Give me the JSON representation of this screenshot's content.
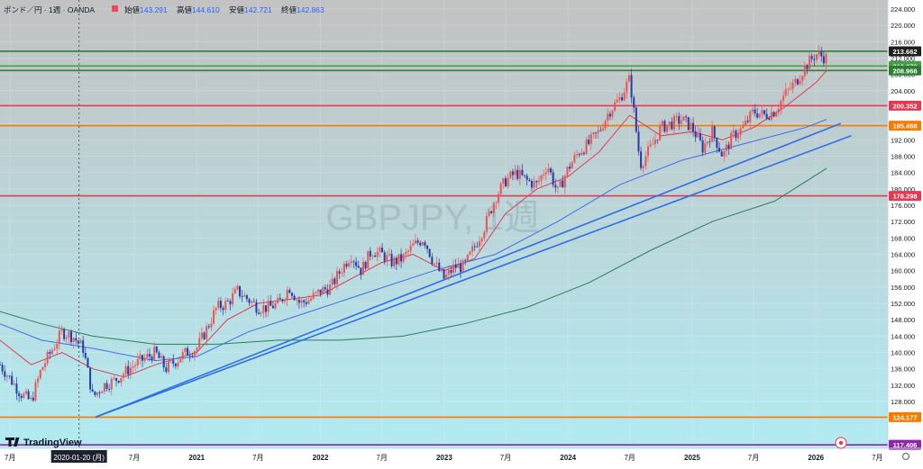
{
  "header": {
    "symbol": "ポンド／円 · 1週 · OANDA",
    "ohlc": [
      {
        "label": "始値",
        "value": "143.291"
      },
      {
        "label": "高値",
        "value": "144.610"
      },
      {
        "label": "安値",
        "value": "142.721"
      },
      {
        "label": "終値",
        "value": "142.863"
      }
    ],
    "up_color": "#f23645",
    "down_color": "#2962ff"
  },
  "watermark": "GBPJPY, 1週",
  "logo_text": "TradingView",
  "crosshair_date": "2020-01-20 (月)",
  "colors": {
    "bg_top": "#c2c2c2",
    "bg_bottom": "#b2ebf2",
    "candle_up": "#ef5350",
    "candle_down": "#283aa8",
    "ma_short": "#e53950",
    "ma_mid": "#3f6ee8",
    "ma_long": "#2e7d5b",
    "trend": "#2f6fe6"
  },
  "chart_data": {
    "type": "candlestick",
    "instrument": "GBPJPY",
    "timeframe": "1週",
    "x_range": [
      "2019-06-01",
      "2026-08-01"
    ],
    "y_range": [
      117,
      224
    ],
    "y_ticks": [
      124,
      128,
      132,
      136,
      140,
      144,
      148,
      152,
      156,
      160,
      164,
      168,
      172,
      176,
      180,
      184,
      188,
      192,
      196,
      200,
      204,
      208,
      212,
      216,
      220,
      224
    ],
    "x_ticks": [
      {
        "date": "2019-07-01",
        "label": "7月"
      },
      {
        "date": "2020-07-01",
        "label": "7月"
      },
      {
        "date": "2021-01-01",
        "label": "2021"
      },
      {
        "date": "2021-07-01",
        "label": "7月"
      },
      {
        "date": "2022-01-01",
        "label": "2022"
      },
      {
        "date": "2022-07-01",
        "label": "7月"
      },
      {
        "date": "2023-01-01",
        "label": "2023"
      },
      {
        "date": "2023-07-01",
        "label": "7月"
      },
      {
        "date": "2024-01-01",
        "label": "2024"
      },
      {
        "date": "2024-07-01",
        "label": "7月"
      },
      {
        "date": "2025-01-01",
        "label": "2025"
      },
      {
        "date": "2025-07-01",
        "label": "7月"
      },
      {
        "date": "2026-01-01",
        "label": "2026"
      },
      {
        "date": "2026-07-01",
        "label": "7月"
      }
    ],
    "price_path": [
      [
        "2019-06-01",
        137
      ],
      [
        "2019-08-01",
        130
      ],
      [
        "2019-09-01",
        128
      ],
      [
        "2019-10-01",
        136
      ],
      [
        "2019-12-01",
        145
      ],
      [
        "2020-01-01",
        144
      ],
      [
        "2020-02-01",
        141
      ],
      [
        "2020-03-01",
        129
      ],
      [
        "2020-04-01",
        132
      ],
      [
        "2020-05-01",
        133
      ],
      [
        "2020-06-01",
        135
      ],
      [
        "2020-07-01",
        137
      ],
      [
        "2020-09-01",
        140
      ],
      [
        "2020-10-01",
        136
      ],
      [
        "2020-11-01",
        138
      ],
      [
        "2020-12-01",
        140
      ],
      [
        "2021-01-01",
        141
      ],
      [
        "2021-02-01",
        146
      ],
      [
        "2021-03-01",
        151
      ],
      [
        "2021-04-01",
        152
      ],
      [
        "2021-05-01",
        155
      ],
      [
        "2021-06-01",
        153
      ],
      [
        "2021-07-01",
        151
      ],
      [
        "2021-08-01",
        151
      ],
      [
        "2021-09-01",
        152
      ],
      [
        "2021-10-01",
        156
      ],
      [
        "2021-11-01",
        152
      ],
      [
        "2021-12-01",
        153
      ],
      [
        "2022-01-01",
        155
      ],
      [
        "2022-02-01",
        156
      ],
      [
        "2022-03-01",
        160
      ],
      [
        "2022-04-01",
        164
      ],
      [
        "2022-05-01",
        160
      ],
      [
        "2022-06-01",
        165
      ],
      [
        "2022-07-01",
        164
      ],
      [
        "2022-08-01",
        162
      ],
      [
        "2022-09-01",
        163
      ],
      [
        "2022-10-01",
        166
      ],
      [
        "2022-11-01",
        168
      ],
      [
        "2022-12-01",
        162
      ],
      [
        "2023-01-01",
        158
      ],
      [
        "2023-02-01",
        161
      ],
      [
        "2023-03-01",
        161
      ],
      [
        "2023-04-01",
        166
      ],
      [
        "2023-05-01",
        171
      ],
      [
        "2023-06-01",
        178
      ],
      [
        "2023-07-01",
        182
      ],
      [
        "2023-08-01",
        184
      ],
      [
        "2023-09-01",
        182
      ],
      [
        "2023-10-01",
        181
      ],
      [
        "2023-11-01",
        186
      ],
      [
        "2023-12-01",
        179
      ],
      [
        "2024-01-01",
        185
      ],
      [
        "2024-02-01",
        189
      ],
      [
        "2024-03-01",
        191
      ],
      [
        "2024-04-01",
        194
      ],
      [
        "2024-05-01",
        199
      ],
      [
        "2024-06-01",
        202
      ],
      [
        "2024-07-01",
        207
      ],
      [
        "2024-08-01",
        186
      ],
      [
        "2024-09-01",
        190
      ],
      [
        "2024-10-01",
        195
      ],
      [
        "2024-11-01",
        196
      ],
      [
        "2024-12-01",
        197
      ],
      [
        "2025-01-01",
        195
      ],
      [
        "2025-02-01",
        190
      ],
      [
        "2025-03-01",
        194
      ],
      [
        "2025-04-01",
        188
      ],
      [
        "2025-05-01",
        193
      ],
      [
        "2025-06-01",
        195
      ],
      [
        "2025-07-01",
        199
      ],
      [
        "2025-08-01",
        198
      ],
      [
        "2025-09-01",
        199
      ],
      [
        "2025-10-01",
        203
      ],
      [
        "2025-11-01",
        206
      ],
      [
        "2025-12-01",
        210
      ],
      [
        "2026-01-01",
        213
      ],
      [
        "2026-02-01",
        212
      ]
    ],
    "moving_averages": [
      {
        "role": "short",
        "points": [
          [
            "2019-06-01",
            143
          ],
          [
            "2019-09-01",
            137
          ],
          [
            "2019-12-01",
            140
          ],
          [
            "2020-03-01",
            136
          ],
          [
            "2020-06-01",
            134
          ],
          [
            "2020-09-01",
            137
          ],
          [
            "2021-01-01",
            140
          ],
          [
            "2021-04-01",
            148
          ],
          [
            "2021-07-01",
            152
          ],
          [
            "2021-10-01",
            153
          ],
          [
            "2022-01-01",
            154
          ],
          [
            "2022-04-01",
            158
          ],
          [
            "2022-07-01",
            162
          ],
          [
            "2022-10-01",
            164
          ],
          [
            "2023-01-01",
            160
          ],
          [
            "2023-04-01",
            163
          ],
          [
            "2023-07-01",
            174
          ],
          [
            "2023-10-01",
            180
          ],
          [
            "2024-01-01",
            183
          ],
          [
            "2024-04-01",
            189
          ],
          [
            "2024-07-01",
            198
          ],
          [
            "2024-10-01",
            193
          ],
          [
            "2025-01-01",
            194
          ],
          [
            "2025-04-01",
            192
          ],
          [
            "2025-07-01",
            195
          ],
          [
            "2025-10-01",
            200
          ],
          [
            "2026-01-01",
            206
          ],
          [
            "2026-02-01",
            208.9
          ]
        ]
      },
      {
        "role": "mid",
        "points": [
          [
            "2019-06-01",
            147
          ],
          [
            "2019-10-01",
            143
          ],
          [
            "2020-03-01",
            141
          ],
          [
            "2020-09-01",
            138
          ],
          [
            "2021-01-01",
            139
          ],
          [
            "2021-06-01",
            145
          ],
          [
            "2021-12-01",
            150
          ],
          [
            "2022-06-01",
            155
          ],
          [
            "2022-12-01",
            160
          ],
          [
            "2023-06-01",
            164
          ],
          [
            "2023-12-01",
            172
          ],
          [
            "2024-06-01",
            181
          ],
          [
            "2024-12-01",
            187
          ],
          [
            "2025-06-01",
            191
          ],
          [
            "2025-12-01",
            195
          ],
          [
            "2026-02-01",
            197
          ]
        ]
      },
      {
        "role": "long",
        "points": [
          [
            "2019-06-01",
            150
          ],
          [
            "2019-10-01",
            147
          ],
          [
            "2020-03-01",
            144
          ],
          [
            "2020-09-01",
            142
          ],
          [
            "2021-03-01",
            142
          ],
          [
            "2021-09-01",
            143
          ],
          [
            "2022-03-01",
            143
          ],
          [
            "2022-09-01",
            144
          ],
          [
            "2023-03-01",
            147
          ],
          [
            "2023-09-01",
            151
          ],
          [
            "2024-03-01",
            157
          ],
          [
            "2024-09-01",
            165
          ],
          [
            "2025-03-01",
            172
          ],
          [
            "2025-09-01",
            177
          ],
          [
            "2026-02-01",
            185
          ]
        ]
      }
    ],
    "trend_lines": [
      {
        "from": [
          "2020-03-09",
          124.2
        ],
        "to": [
          "2026-03-15",
          196
        ]
      },
      {
        "from": [
          "2020-03-09",
          124.2
        ],
        "to": [
          "2026-04-15",
          193
        ]
      }
    ],
    "horizontal_levels": [
      {
        "price": 213.662,
        "label": "213.662",
        "color": "#2e7d32",
        "text_color": "#ffffff",
        "tag_bg": "#1e1e1e"
      },
      {
        "price": 210.07,
        "label": "210.070",
        "color": "#43a047",
        "text_color": "#ffffff",
        "tag_bg": "#43a047"
      },
      {
        "price": 208.966,
        "label": "208.966",
        "color": "#2e7d32",
        "text_color": "#ffffff",
        "tag_bg": "#2e7d32"
      },
      {
        "price": 200.352,
        "label": "200.352",
        "color": "#e53950",
        "text_color": "#ffffff",
        "tag_bg": "#e53950"
      },
      {
        "price": 195.468,
        "label": "195.468",
        "color": "#f57c00",
        "text_color": "#ffffff",
        "tag_bg": "#f57c00"
      },
      {
        "price": 178.298,
        "label": "178.298",
        "color": "#e53950",
        "text_color": "#ffffff",
        "tag_bg": "#e53950"
      },
      {
        "price": 124.177,
        "label": "124.177",
        "color": "#f57c00",
        "text_color": "#ffffff",
        "tag_bg": "#f57c00"
      },
      {
        "price": 117.406,
        "label": "117.406",
        "color": "#8e24aa",
        "text_color": "#ffffff",
        "tag_bg": "#8e24aa"
      }
    ],
    "crosshair_x_date": "2020-01-20"
  }
}
